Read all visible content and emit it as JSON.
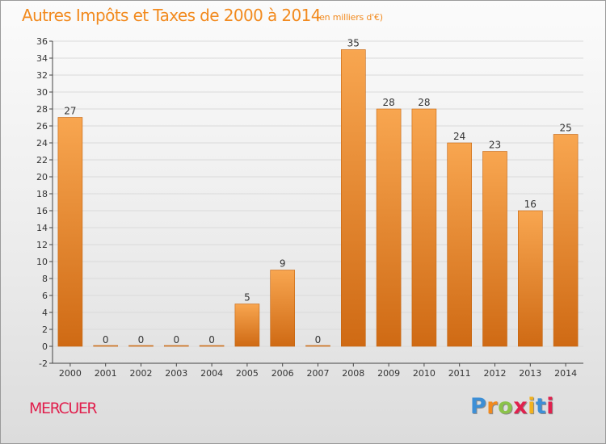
{
  "header": {
    "title": "Autres Impôts et Taxes de 2000 à 2014",
    "subtitle": "(en milliers d'€)"
  },
  "footer": {
    "city": "MERCUER",
    "logo": {
      "text": "Proxiti",
      "letter_colors": [
        "#3d8fd6",
        "#f28a1e",
        "#8bc34a",
        "#e0214e",
        "#f2b21e",
        "#3d8fd6",
        "#e0214e"
      ]
    }
  },
  "colors": {
    "bar_top": "#f8a650",
    "bar_bottom": "#cf6a14",
    "bar_stroke": "#c4640f",
    "axis": "#444444",
    "grid": "#dadada",
    "title": "#f28a1e",
    "city": "#e0214e"
  },
  "chart_data": {
    "type": "bar",
    "categories": [
      "2000",
      "2001",
      "2002",
      "2003",
      "2004",
      "2005",
      "2006",
      "2007",
      "2008",
      "2009",
      "2010",
      "2011",
      "2012",
      "2013",
      "2014"
    ],
    "values": [
      27,
      0,
      0,
      0,
      0,
      5,
      9,
      0,
      35,
      28,
      28,
      24,
      23,
      16,
      25
    ],
    "data_labels": [
      "27",
      "0",
      "0",
      "0",
      "0",
      "5",
      "9",
      "0",
      "35",
      "28",
      "28",
      "24",
      "23",
      "16",
      "25"
    ],
    "ylim": [
      -2,
      36
    ],
    "yticks": [
      -2,
      0,
      2,
      4,
      6,
      8,
      10,
      12,
      14,
      16,
      18,
      20,
      22,
      24,
      26,
      28,
      30,
      32,
      34,
      36
    ],
    "grid": true
  }
}
